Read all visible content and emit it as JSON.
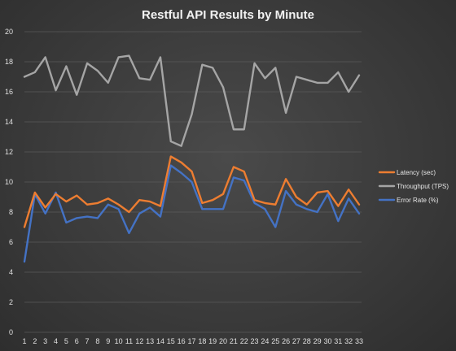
{
  "chart_data": {
    "type": "line",
    "title": "Restful API Results by Minute",
    "xlabel": "",
    "ylabel": "",
    "x": [
      1,
      2,
      3,
      4,
      5,
      6,
      7,
      8,
      9,
      10,
      11,
      12,
      13,
      14,
      15,
      16,
      17,
      18,
      19,
      20,
      21,
      22,
      23,
      24,
      25,
      26,
      27,
      28,
      29,
      30,
      31,
      32,
      33
    ],
    "ylim": [
      0,
      20
    ],
    "yticks": [
      0,
      2,
      4,
      6,
      8,
      10,
      12,
      14,
      16,
      18,
      20
    ],
    "grid": true,
    "legend_position": "right",
    "series": [
      {
        "name": "Latency (sec)",
        "color": "#ed7d31",
        "values": [
          7.0,
          9.3,
          8.3,
          9.2,
          8.7,
          9.1,
          8.5,
          8.6,
          8.9,
          8.5,
          8.0,
          8.8,
          8.7,
          8.4,
          11.7,
          11.3,
          10.7,
          8.6,
          8.8,
          9.2,
          11.0,
          10.7,
          8.8,
          8.6,
          8.5,
          10.2,
          9.0,
          8.5,
          9.3,
          9.4,
          8.4,
          9.5,
          8.5
        ]
      },
      {
        "name": "Throughput (TPS)",
        "color": "#a5a5a5",
        "values": [
          17.0,
          17.3,
          18.3,
          16.1,
          17.7,
          15.8,
          17.9,
          17.4,
          16.6,
          18.3,
          18.4,
          16.9,
          16.8,
          18.3,
          12.7,
          12.4,
          14.5,
          17.8,
          17.6,
          16.3,
          13.5,
          13.5,
          17.9,
          16.9,
          17.6,
          14.6,
          17.0,
          16.8,
          16.6,
          16.6,
          17.3,
          16.0,
          17.1
        ]
      },
      {
        "name": "Error Rate (%)",
        "color": "#4472c4",
        "values": [
          4.7,
          9.2,
          7.9,
          9.3,
          7.3,
          7.6,
          7.7,
          7.6,
          8.5,
          8.2,
          6.6,
          7.9,
          8.3,
          7.7,
          11.1,
          10.6,
          10.0,
          8.2,
          8.2,
          8.2,
          10.3,
          10.1,
          8.6,
          8.2,
          7.0,
          9.4,
          8.5,
          8.2,
          8.0,
          9.2,
          7.4,
          8.9,
          7.9
        ]
      }
    ]
  }
}
